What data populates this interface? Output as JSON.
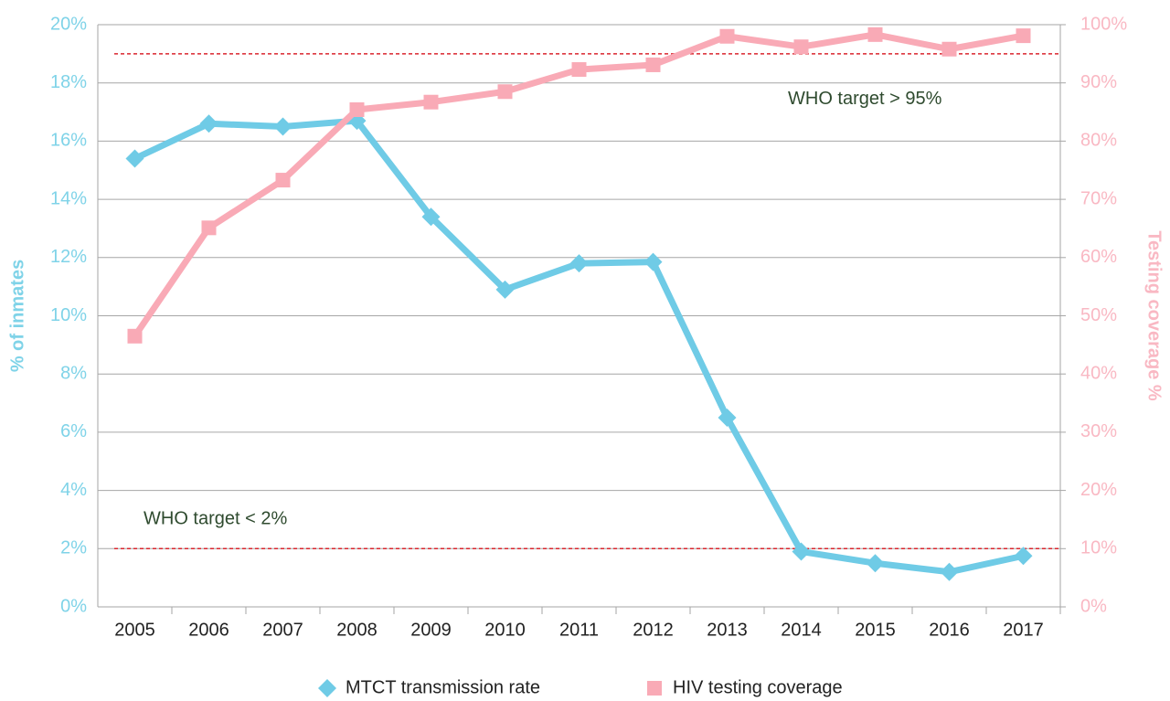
{
  "chart_data": {
    "type": "line",
    "categories": [
      "2005",
      "2006",
      "2007",
      "2008",
      "2009",
      "2010",
      "2011",
      "2012",
      "2013",
      "2014",
      "2015",
      "2016",
      "2017"
    ],
    "series": [
      {
        "name": "MTCT transmission rate",
        "color": "#6fcbe6",
        "marker": "diamond",
        "axis": "y",
        "values": [
          15.4,
          16.6,
          16.5,
          16.7,
          13.4,
          10.9,
          11.8,
          11.85,
          6.5,
          1.9,
          1.5,
          1.2,
          1.75
        ]
      },
      {
        "name": "HIV testing coverage",
        "color": "#f9aab6",
        "marker": "square",
        "axis": "y2",
        "values": [
          46.5,
          65.1,
          73.3,
          85.4,
          86.7,
          88.5,
          92.3,
          93.1,
          98.0,
          96.2,
          98.3,
          95.8,
          98.1
        ]
      }
    ],
    "ylabel": "% of inmates",
    "y2label": "Testing coverage %",
    "ylim": [
      0,
      20
    ],
    "yticks": [
      {
        "value": 0,
        "label": "0%"
      },
      {
        "value": 2,
        "label": "2%"
      },
      {
        "value": 4,
        "label": "4%"
      },
      {
        "value": 6,
        "label": "6%"
      },
      {
        "value": 8,
        "label": "8%"
      },
      {
        "value": 10,
        "label": "10%"
      },
      {
        "value": 12,
        "label": "12%"
      },
      {
        "value": 14,
        "label": "14%"
      },
      {
        "value": 16,
        "label": "16%"
      },
      {
        "value": 18,
        "label": "18%"
      },
      {
        "value": 20,
        "label": "20%"
      }
    ],
    "y2lim": [
      0,
      100
    ],
    "y2ticks": [
      {
        "value": 0,
        "label": "0%"
      },
      {
        "value": 10,
        "label": "10%"
      },
      {
        "value": 20,
        "label": "20%"
      },
      {
        "value": 30,
        "label": "30%"
      },
      {
        "value": 40,
        "label": "40%"
      },
      {
        "value": 50,
        "label": "50%"
      },
      {
        "value": 60,
        "label": "60%"
      },
      {
        "value": 70,
        "label": "70%"
      },
      {
        "value": 80,
        "label": "80%"
      },
      {
        "value": 90,
        "label": "90%"
      },
      {
        "value": 100,
        "label": "100%"
      }
    ],
    "reference_lines": [
      {
        "value": 95,
        "axis": "y2",
        "label": "WHO target > 95%",
        "color": "#d9262e"
      },
      {
        "value": 2,
        "axis": "y",
        "label": "WHO target < 2%",
        "color": "#d9262e"
      }
    ],
    "grid": true,
    "legend": "bottom"
  }
}
